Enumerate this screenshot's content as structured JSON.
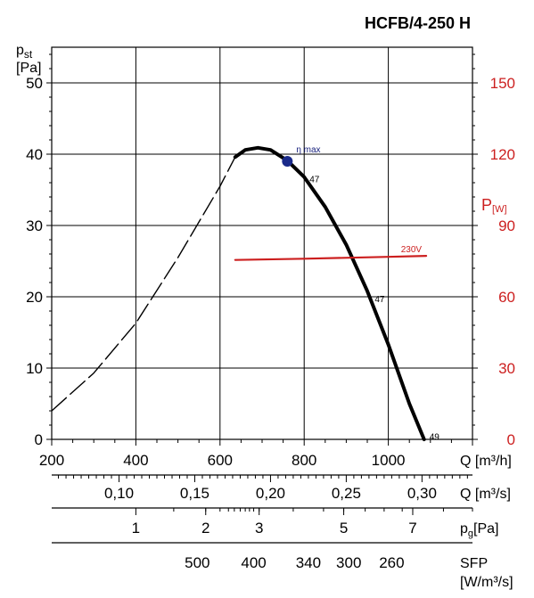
{
  "chart_data": {
    "type": "line",
    "title": "HCFB/4-250 H",
    "ylabel": {
      "main": "p",
      "sub": "st",
      "unit": "[Pa]"
    },
    "ylim": [
      0,
      55
    ],
    "y_ticks": [
      0,
      10,
      20,
      30,
      40,
      50
    ],
    "xlabel": {
      "main": "Q",
      "unit": "[m³/h]"
    },
    "xlim": [
      200,
      1200
    ],
    "x_ticks": [
      200,
      400,
      600,
      800,
      1000
    ],
    "right_axis": {
      "label": {
        "main": "P",
        "unit": "[W]"
      },
      "ylim": [
        0,
        165
      ],
      "ticks": [
        0,
        30,
        60,
        90,
        120,
        150
      ],
      "color": "#cc1f1f"
    },
    "secondary_scales": [
      {
        "label": {
          "main": "Q",
          "unit": "[m³/s]"
        },
        "ticks": [
          {
            "label": "0,10",
            "at_m3h": 360
          },
          {
            "label": "0,15",
            "at_m3h": 540
          },
          {
            "label": "0,20",
            "at_m3h": 720
          },
          {
            "label": "0,25",
            "at_m3h": 900
          },
          {
            "label": "0,30",
            "at_m3h": 1080
          }
        ],
        "minor_at_m3h": [
          216,
          234,
          252,
          270,
          288,
          306,
          324,
          342,
          378,
          396,
          414,
          432,
          450,
          468,
          486,
          504,
          522,
          558,
          576,
          594,
          612,
          630,
          648,
          666,
          684,
          702,
          738,
          756,
          774,
          792,
          810,
          828,
          846,
          864,
          882,
          918,
          936,
          954,
          972,
          990,
          1008,
          1026,
          1044,
          1062,
          1098,
          1116,
          1134,
          1152,
          1170,
          1188
        ]
      },
      {
        "label": {
          "main": "p",
          "sub": "g",
          "unit": "[Pa]"
        },
        "ticks": [
          {
            "label": "1",
            "at_m3h": 400
          },
          {
            "label": "2",
            "at_m3h": 566
          },
          {
            "label": "3",
            "at_m3h": 693
          },
          {
            "label": "5",
            "at_m3h": 894
          },
          {
            "label": "7",
            "at_m3h": 1058
          }
        ],
        "minor_at_m3h": [
          490,
          566,
          600,
          620,
          634,
          648,
          660,
          670,
          680,
          693,
          774,
          846,
          894,
          945,
          990,
          1033,
          1058,
          1131,
          1200
        ]
      },
      {
        "label": {
          "main": "SFP",
          "unit": "[W/m³/s]"
        },
        "ticks": [
          {
            "label": "500",
            "at_m3h": 546
          },
          {
            "label": "400",
            "at_m3h": 680
          },
          {
            "label": "340",
            "at_m3h": 810
          },
          {
            "label": "300",
            "at_m3h": 906
          },
          {
            "label": "260",
            "at_m3h": 1008
          }
        ]
      }
    ],
    "series": [
      {
        "name": "",
        "role": "pressure-curve-extrapolated",
        "style": "dashed",
        "color": "#000000",
        "x": [
          200,
          300,
          400,
          500,
          600,
          636
        ],
        "y": [
          4,
          9.3,
          16.3,
          25.5,
          35.5,
          39.6
        ]
      },
      {
        "name": "",
        "role": "pressure-curve",
        "style": "solid",
        "color": "#000000",
        "x": [
          636,
          660,
          690,
          720,
          760,
          800,
          850,
          900,
          950,
          1000,
          1050,
          1085
        ],
        "y": [
          39.6,
          40.6,
          40.9,
          40.6,
          39.1,
          36.8,
          32.6,
          27.3,
          20.8,
          13.3,
          5.0,
          0
        ]
      },
      {
        "name": "230V",
        "role": "power",
        "axis": "right",
        "style": "solid",
        "color": "#cc1f1f",
        "x": [
          636,
          800,
          1000,
          1090
        ],
        "y": [
          75.5,
          76,
          76.8,
          77.2
        ]
      }
    ],
    "annotations": [
      {
        "text": "η max",
        "x": 760,
        "y": 39,
        "kind": "point",
        "color": "#1a237e"
      },
      {
        "text": "47",
        "x": 800,
        "y": 37.3
      },
      {
        "text": "47",
        "x": 955,
        "y": 20.5
      },
      {
        "text": "49",
        "x": 1085,
        "y": 1.2
      },
      {
        "text": "230V",
        "x": 1030,
        "y": 78.8,
        "axis": "right",
        "color": "#cc1f1f"
      }
    ],
    "grid": true
  }
}
